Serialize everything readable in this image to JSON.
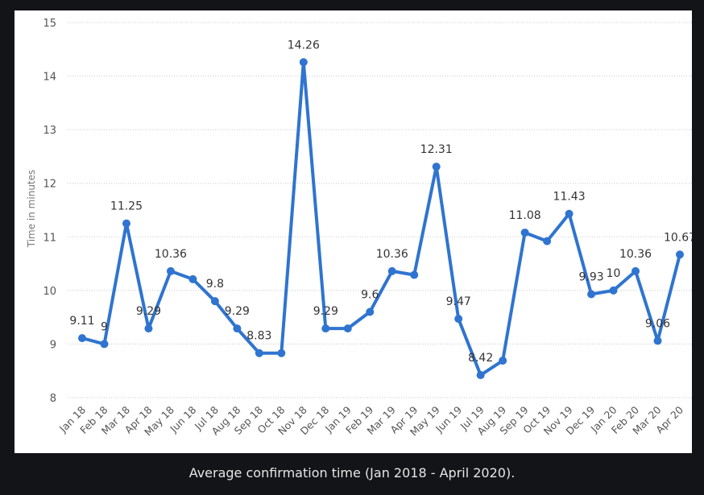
{
  "caption": "Average confirmation time (Jan 2018 - April 2020).",
  "chart_data": {
    "type": "line",
    "title": "",
    "xlabel": "",
    "ylabel": "Time in minutes",
    "ylim": [
      8,
      15
    ],
    "yticks": [
      8,
      9,
      10,
      11,
      12,
      13,
      14,
      15
    ],
    "grid": true,
    "line_color": "#2f74d0",
    "categories": [
      "Jan 18",
      "Feb 18",
      "Mar 18",
      "Apr 18",
      "May 18",
      "Jun 18",
      "Jul 18",
      "Aug 18",
      "Sep 18",
      "Oct 18",
      "Nov 18",
      "Dec 18",
      "Jan 19",
      "Feb 19",
      "Mar 19",
      "Apr 19",
      "May 19",
      "Jun 19",
      "Jul 19",
      "Aug 19",
      "Sep 19",
      "Oct 19",
      "Nov 19",
      "Dec 19",
      "Jan 20",
      "Feb 20",
      "Mar 20",
      "Apr 20"
    ],
    "series": [
      {
        "values": [
          9.11,
          9,
          11.25,
          9.29,
          10.36,
          10.21,
          9.8,
          9.29,
          8.83,
          8.83,
          14.26,
          9.29,
          9.29,
          9.6,
          10.36,
          10.29,
          12.31,
          9.47,
          8.42,
          8.69,
          11.08,
          10.92,
          11.43,
          9.93,
          10,
          10.36,
          9.06,
          10.67
        ],
        "data_labels": [
          "9.11",
          "9",
          "11.25",
          "9.29",
          "10.36",
          "",
          "9.8",
          "9.29",
          "8.83",
          "",
          "14.26",
          "9.29",
          "",
          "9.6",
          "10.36",
          "",
          "12.31",
          "9.47",
          "8.42",
          "",
          "11.08",
          "",
          "11.43",
          "9.93",
          "10",
          "10.36",
          "9.06",
          "10.67"
        ]
      }
    ]
  }
}
